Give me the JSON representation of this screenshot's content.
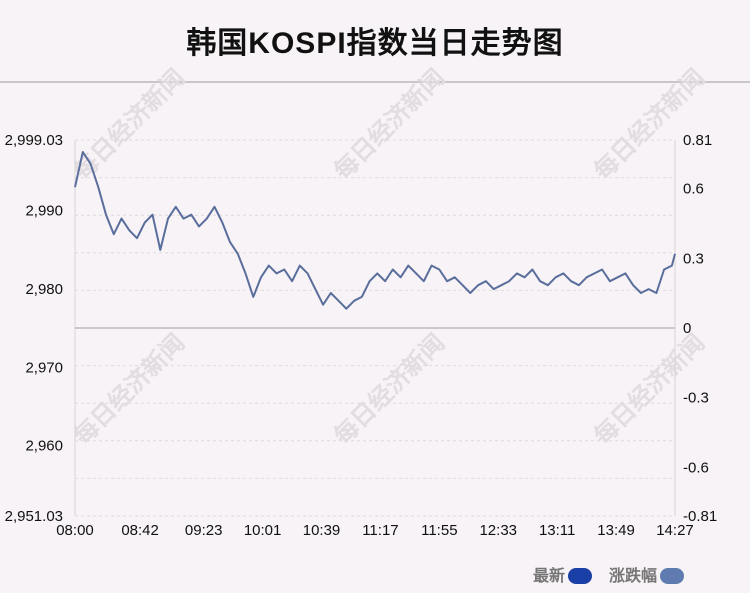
{
  "title": "韩国KOSPI指数当日走势图",
  "watermark": "每日经济新闻",
  "legend": {
    "latest_label": "最新",
    "latest_color": "#1a3fa6",
    "change_label": "涨跌幅",
    "change_color": "#5f7bb0"
  },
  "chart_data": {
    "type": "line",
    "title": "韩国KOSPI指数当日走势图",
    "x_ticks": [
      "08:00",
      "08:42",
      "09:23",
      "10:01",
      "10:39",
      "11:17",
      "11:55",
      "12:33",
      "13:11",
      "13:49",
      "14:27"
    ],
    "y_left_ticks": [
      "2,999.03",
      "2,990",
      "2,980",
      "2,970",
      "2,960",
      "2,951.03"
    ],
    "y_left_range": [
      2951.03,
      2999.03
    ],
    "y_right_ticks": [
      "0.81",
      "0.6",
      "0.3",
      "0",
      "-0.3",
      "-0.6",
      "-0.81"
    ],
    "y_right_range": [
      -0.81,
      0.81
    ],
    "baseline": 2975.03,
    "line_color": "#5a6e9c",
    "grid": true,
    "series": [
      {
        "x": [
          "08:00",
          "08:05",
          "08:10",
          "08:15",
          "08:20",
          "08:25",
          "08:30",
          "08:35",
          "08:40",
          "08:45",
          "08:50",
          "08:55",
          "09:00",
          "09:05",
          "09:10",
          "09:15",
          "09:20",
          "09:25",
          "09:30",
          "09:35",
          "09:40",
          "09:45",
          "09:50",
          "09:55",
          "10:00",
          "10:05",
          "10:10",
          "10:15",
          "10:20",
          "10:25",
          "10:30",
          "10:35",
          "10:40",
          "10:45",
          "10:50",
          "10:55",
          "11:00",
          "11:05",
          "11:10",
          "11:15",
          "11:20",
          "11:25",
          "11:30",
          "11:35",
          "11:40",
          "11:45",
          "11:50",
          "11:55",
          "12:00",
          "12:05",
          "12:10",
          "12:15",
          "12:20",
          "12:25",
          "12:30",
          "12:35",
          "12:40",
          "12:45",
          "12:50",
          "12:55",
          "13:00",
          "13:05",
          "13:10",
          "13:15",
          "13:20",
          "13:25",
          "13:30",
          "13:35",
          "13:40",
          "13:45",
          "13:50",
          "13:55",
          "14:00",
          "14:05",
          "14:10",
          "14:15",
          "14:20",
          "14:25",
          "14:27"
        ],
        "y": [
          2993.0,
          2997.5,
          2996.0,
          2993.0,
          2989.5,
          2987.0,
          2989.0,
          2987.5,
          2986.5,
          2988.5,
          2989.5,
          2985.0,
          2989.0,
          2990.5,
          2989.0,
          2989.5,
          2988.0,
          2989.0,
          2990.5,
          2988.5,
          2986.0,
          2984.5,
          2982.0,
          2979.0,
          2981.5,
          2983.0,
          2982.0,
          2982.5,
          2981.0,
          2983.0,
          2982.0,
          2980.0,
          2978.0,
          2979.5,
          2978.5,
          2977.5,
          2978.5,
          2979.0,
          2981.0,
          2982.0,
          2981.0,
          2982.5,
          2981.5,
          2983.0,
          2982.0,
          2981.0,
          2983.0,
          2982.5,
          2981.0,
          2981.5,
          2980.5,
          2979.5,
          2980.5,
          2981.0,
          2980.0,
          2980.5,
          2981.0,
          2982.0,
          2981.5,
          2982.5,
          2981.0,
          2980.5,
          2981.5,
          2982.0,
          2981.0,
          2980.5,
          2981.5,
          2982.0,
          2982.5,
          2981.0,
          2981.5,
          2982.0,
          2980.5,
          2979.5,
          2980.0,
          2979.5,
          2982.5,
          2983.0,
          2984.5
        ]
      }
    ]
  }
}
